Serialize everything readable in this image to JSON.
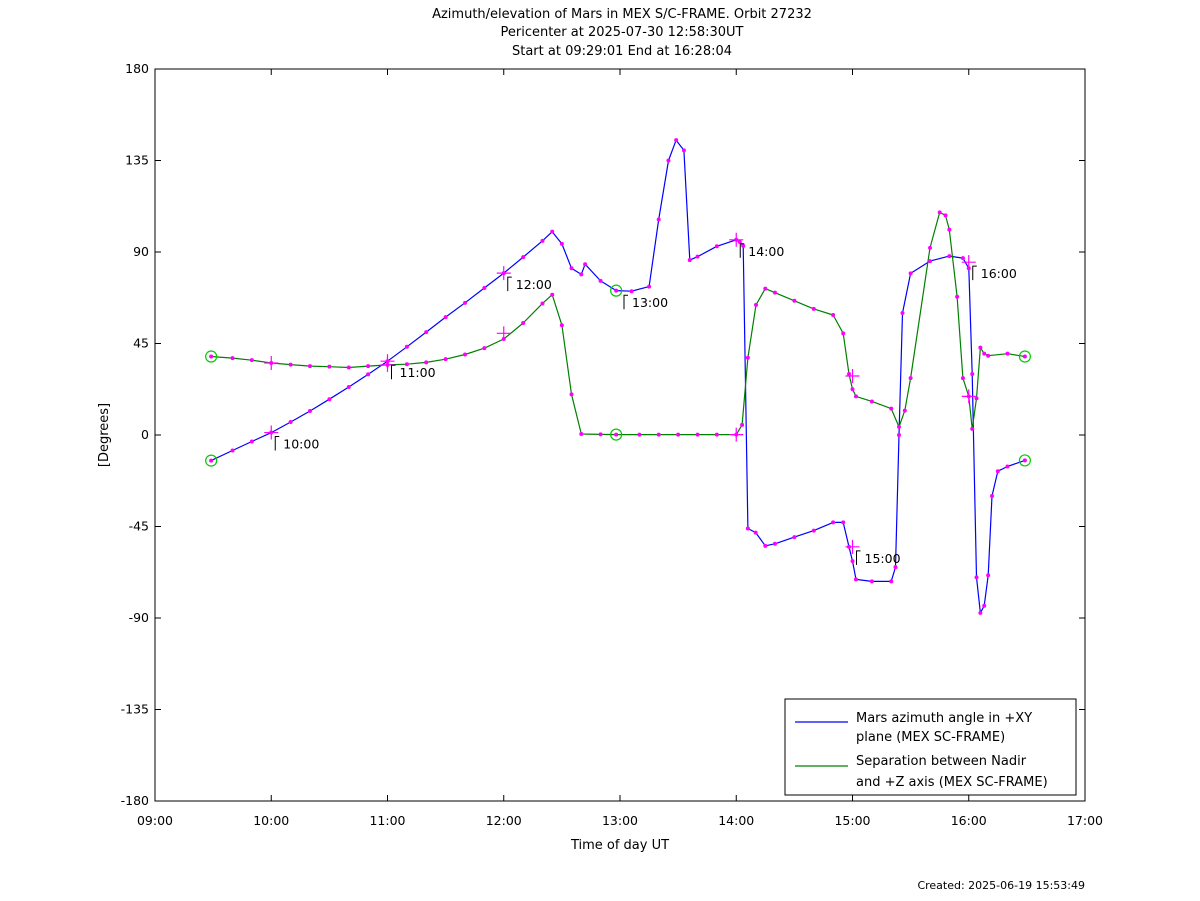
{
  "chart_data": {
    "type": "line",
    "title_lines": [
      "Azimuth/elevation of Mars in MEX S/C-FRAME.  Orbit 27232",
      "Pericenter at 2025-07-30 12:58:30UT",
      "Start at 09:29:01 End at 16:28:04"
    ],
    "xlabel": "Time of day UT",
    "ylabel": "[Degrees]",
    "xlim": [
      9.0,
      17.0
    ],
    "ylim": [
      -180,
      180
    ],
    "x_ticks": [
      {
        "v": 9,
        "label": "09:00"
      },
      {
        "v": 10,
        "label": "10:00"
      },
      {
        "v": 11,
        "label": "11:00"
      },
      {
        "v": 12,
        "label": "12:00"
      },
      {
        "v": 13,
        "label": "13:00"
      },
      {
        "v": 14,
        "label": "14:00"
      },
      {
        "v": 15,
        "label": "15:00"
      },
      {
        "v": 16,
        "label": "16:00"
      },
      {
        "v": 17,
        "label": "17:00"
      }
    ],
    "y_ticks": [
      {
        "v": 180,
        "label": "180"
      },
      {
        "v": 135,
        "label": "135"
      },
      {
        "v": 90,
        "label": "90"
      },
      {
        "v": 45,
        "label": "45"
      },
      {
        "v": 0,
        "label": "0"
      },
      {
        "v": -45,
        "label": "-45"
      },
      {
        "v": -90,
        "label": "-90"
      },
      {
        "v": -135,
        "label": "-135"
      },
      {
        "v": -180,
        "label": "-180"
      }
    ],
    "grid": false,
    "legend_position": "bottom-right",
    "series": [
      {
        "name": "Mars azimuth angle in +XY plane (MEX SC-FRAME)",
        "legend_lines": [
          "Mars azimuth angle in +XY",
          "plane (MEX SC-FRAME)"
        ],
        "color": "#0000ff",
        "x": [
          9.483,
          9.667,
          9.833,
          10.0,
          10.167,
          10.333,
          10.5,
          10.667,
          10.833,
          11.0,
          11.167,
          11.333,
          11.5,
          11.667,
          11.833,
          12.0,
          12.167,
          12.333,
          12.417,
          12.5,
          12.583,
          12.667,
          12.7,
          12.833,
          12.967,
          13.1,
          13.25,
          13.333,
          13.417,
          13.483,
          13.55,
          13.6,
          13.667,
          13.833,
          14.0,
          14.03,
          14.06,
          14.1,
          14.167,
          14.25,
          14.333,
          14.5,
          14.667,
          14.833,
          14.92,
          14.97,
          15.0,
          15.03,
          15.167,
          15.333,
          15.37,
          15.4,
          15.43,
          15.5,
          15.667,
          15.833,
          15.95,
          16.0,
          16.03,
          16.067,
          16.1,
          16.133,
          16.167,
          16.2,
          16.25,
          16.333,
          16.483
        ],
        "values": [
          -12.6,
          -7.6,
          -3.2,
          1.2,
          6.4,
          11.8,
          17.6,
          23.6,
          29.8,
          36.3,
          43.4,
          50.6,
          58.0,
          65.0,
          72.3,
          79.6,
          87.5,
          95.5,
          100.0,
          94.0,
          82.0,
          79.0,
          84.0,
          75.8,
          71.0,
          70.7,
          73.0,
          106.0,
          135.0,
          145.0,
          140.0,
          86.0,
          87.7,
          92.8,
          96.0,
          95.0,
          93.0,
          -46.0,
          -48.0,
          -54.5,
          -53.5,
          -50.2,
          -47.0,
          -43.0,
          -43.0,
          -55.0,
          -62.0,
          -71.0,
          -72.0,
          -72.0,
          -65.0,
          0.0,
          60.0,
          79.5,
          85.5,
          88.0,
          87.0,
          82.0,
          30.0,
          -70.0,
          -87.5,
          -84.0,
          -69.0,
          -30.0,
          -17.8,
          -15.5,
          -12.5
        ]
      },
      {
        "name": "Separation between Nadir and +Z axis (MEX SC-FRAME)",
        "legend_lines": [
          "Separation between Nadir",
          "and +Z axis (MEX SC-FRAME)"
        ],
        "color": "#008000",
        "x": [
          9.483,
          9.667,
          9.833,
          10.0,
          10.167,
          10.333,
          10.5,
          10.667,
          10.833,
          11.0,
          11.167,
          11.333,
          11.5,
          11.667,
          11.833,
          12.0,
          12.167,
          12.333,
          12.417,
          12.5,
          12.583,
          12.667,
          12.833,
          12.967,
          13.167,
          13.333,
          13.5,
          13.667,
          13.833,
          14.0,
          14.05,
          14.1,
          14.17,
          14.25,
          14.333,
          14.5,
          14.667,
          14.833,
          14.92,
          14.97,
          15.0,
          15.03,
          15.167,
          15.333,
          15.4,
          15.45,
          15.5,
          15.667,
          15.75,
          15.8,
          15.833,
          15.9,
          15.95,
          16.0,
          16.03,
          16.067,
          16.1,
          16.133,
          16.167,
          16.333,
          16.483
        ],
        "values": [
          38.6,
          37.8,
          36.8,
          35.4,
          34.6,
          33.9,
          33.6,
          33.2,
          33.9,
          34.5,
          34.8,
          35.7,
          37.3,
          39.6,
          42.7,
          47.2,
          55.1,
          64.7,
          69.0,
          54.0,
          20.0,
          0.5,
          0.3,
          0.2,
          0.2,
          0.2,
          0.2,
          0.2,
          0.2,
          0.2,
          5.0,
          38.0,
          64.0,
          72.0,
          70.0,
          66.0,
          62.0,
          59.0,
          50.0,
          30.0,
          22.5,
          19.0,
          16.5,
          13.0,
          4.0,
          12.0,
          28.0,
          92.0,
          109.5,
          108.0,
          101.0,
          68.0,
          28.0,
          19.0,
          3.0,
          18.0,
          43.0,
          40.0,
          39.0,
          40.0,
          38.6
        ]
      }
    ],
    "time_markers": [
      {
        "x": 10.0,
        "y": 1.2,
        "label": "10:00"
      },
      {
        "x": 11.0,
        "y": 36.3,
        "label": "11:00"
      },
      {
        "x": 12.0,
        "y": 79.6,
        "label": "12:00"
      },
      {
        "x": 13.0,
        "y": 70.7,
        "label": "13:00"
      },
      {
        "x": 14.0,
        "y": 96.0,
        "label": "14:00"
      },
      {
        "x": 15.0,
        "y": -55.0,
        "label": "15:00"
      },
      {
        "x": 16.0,
        "y": 85.0,
        "label": "16:00"
      }
    ],
    "green_markers": [
      {
        "x": 9.483,
        "y": -12.6
      },
      {
        "x": 9.483,
        "y": 38.6
      },
      {
        "x": 12.967,
        "y": 71.0
      },
      {
        "x": 12.967,
        "y": 0.2
      },
      {
        "x": 16.483,
        "y": -12.5
      },
      {
        "x": 16.483,
        "y": 38.6
      }
    ],
    "cross_markers": [
      {
        "x": 10.0,
        "y": 1.2
      },
      {
        "x": 11.0,
        "y": 36.3
      },
      {
        "x": 12.0,
        "y": 79.6
      },
      {
        "x": 14.0,
        "y": 96.0
      },
      {
        "x": 15.0,
        "y": -55.0
      },
      {
        "x": 16.0,
        "y": 85.0
      },
      {
        "x": 10.0,
        "y": 35.4
      },
      {
        "x": 11.0,
        "y": 34.5
      },
      {
        "x": 12.0,
        "y": 50.0
      },
      {
        "x": 14.0,
        "y": 0.2
      },
      {
        "x": 15.0,
        "y": 29.0
      },
      {
        "x": 16.0,
        "y": 19.0
      }
    ],
    "footer": "Created: 2025-06-19 15:53:49"
  }
}
